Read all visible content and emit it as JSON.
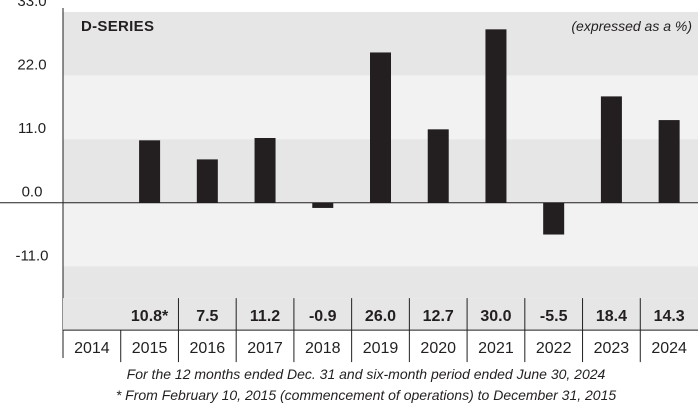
{
  "chart_data": {
    "type": "bar",
    "title": "D-SERIES",
    "unit_note": "(expressed as a %)",
    "categories": [
      "2014",
      "2015",
      "2016",
      "2017",
      "2018",
      "2019",
      "2020",
      "2021",
      "2022",
      "2023",
      "2024"
    ],
    "values": [
      null,
      10.8,
      7.5,
      11.2,
      -0.9,
      26.0,
      12.7,
      30.0,
      -5.5,
      18.4,
      14.3
    ],
    "value_labels": [
      "",
      "10.8*",
      "7.5",
      "11.2",
      "-0.9",
      "26.0",
      "12.7",
      "30.0",
      "-5.5",
      "18.4",
      "14.3"
    ],
    "y_ticks": [
      "33.0",
      "22.0",
      "11.0",
      "0.0",
      "-11.0"
    ],
    "ylim": [
      -16.5,
      33.0
    ],
    "bar_color": "#231f20",
    "band_colors": [
      "#e6e6e7",
      "#f2f2f2"
    ],
    "grid": false,
    "footnotes": [
      "For the 12 months ended Dec. 31 and six-month period ended June 30, 2024",
      "* From February 10, 2015 (commencement of operations) to December 31, 2015"
    ]
  }
}
